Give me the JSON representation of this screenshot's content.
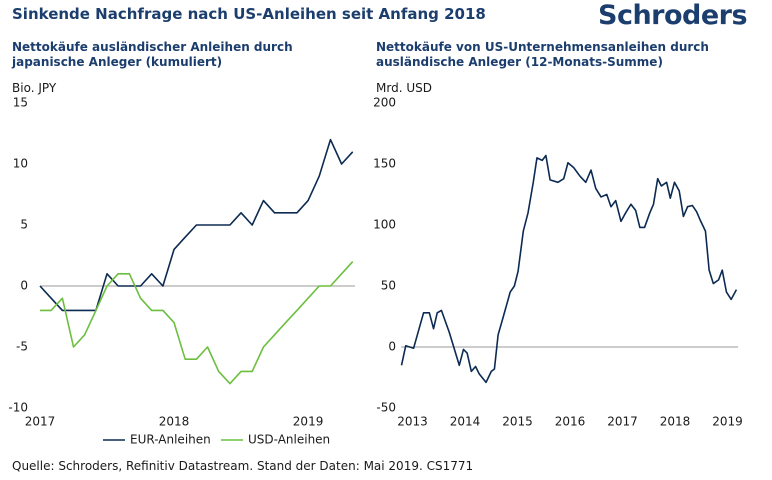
{
  "title": "Sinkende Nachfrage nach US-Anleihen seit Anfang 2018",
  "logo": "Schroders",
  "footer": "Quelle: Schroders, Refinitiv Datastream. Stand der Daten: Mai 2019. CS1771",
  "chart_data": [
    {
      "type": "line",
      "title": "Nettokäufe ausländischer Anleihen durch japanische Anleger (kumuliert)",
      "y_label": "Bio. JPY",
      "x": [
        2017,
        2017.083,
        2017.167,
        2017.25,
        2017.333,
        2017.417,
        2017.5,
        2017.583,
        2017.667,
        2017.75,
        2017.833,
        2017.917,
        2018,
        2018.083,
        2018.167,
        2018.25,
        2018.333,
        2018.417,
        2018.5,
        2018.583,
        2018.667,
        2018.75,
        2018.833,
        2018.917,
        2019,
        2019.083,
        2019.167,
        2019.25,
        2019.333
      ],
      "series": [
        {
          "name": "EUR-Anleihen",
          "color": "#0c2a52",
          "values": [
            0,
            -1,
            -2,
            -2,
            -2,
            -2,
            1,
            0,
            0,
            0,
            1,
            0,
            3,
            4,
            5,
            5,
            5,
            5,
            6,
            5,
            7,
            6,
            6,
            6,
            7,
            9,
            12,
            10,
            11
          ]
        },
        {
          "name": "USD-Anleihen",
          "color": "#6cbf3e",
          "values": [
            -2,
            -2,
            -1,
            -5,
            -4,
            -2,
            0,
            1,
            1,
            -1,
            -2,
            -2,
            -3,
            -6,
            -6,
            -5,
            -7,
            -8,
            -7,
            -7,
            -5,
            -4,
            -3,
            -2,
            -1,
            0,
            0,
            1,
            2
          ]
        }
      ],
      "xlim": [
        2017,
        2019.35
      ],
      "xticks": [
        2017,
        2018,
        2019
      ],
      "ylim": [
        -10,
        15
      ],
      "yticks": [
        -10,
        -5,
        0,
        5,
        10,
        15
      ]
    },
    {
      "type": "line",
      "title": "Nettokäufe von US-Unternehmensanleihen durch ausländische Anleger (12-Monats-Summe)",
      "y_label": "Mrd. USD",
      "x": [
        2012.79,
        2012.87,
        2013.02,
        2013.21,
        2013.32,
        2013.4,
        2013.47,
        2013.55,
        2013.7,
        2013.82,
        2013.89,
        2013.97,
        2014.04,
        2014.12,
        2014.2,
        2014.27,
        2014.4,
        2014.5,
        2014.56,
        2014.63,
        2014.73,
        2014.86,
        2014.94,
        2015.01,
        2015.11,
        2015.2,
        2015.3,
        2015.37,
        2015.47,
        2015.54,
        2015.62,
        2015.77,
        2015.88,
        2015.96,
        2016.07,
        2016.19,
        2016.3,
        2016.4,
        2016.49,
        2016.59,
        2016.7,
        2016.78,
        2016.87,
        2016.97,
        2017.06,
        2017.16,
        2017.25,
        2017.33,
        2017.42,
        2017.52,
        2017.59,
        2017.67,
        2017.74,
        2017.84,
        2017.91,
        2017.99,
        2018.08,
        2018.16,
        2018.24,
        2018.33,
        2018.41,
        2018.48,
        2018.58,
        2018.65,
        2018.73,
        2018.83,
        2018.9,
        2018.98,
        2019.07,
        2019.17
      ],
      "series": [
        {
          "color": "#0c2a52",
          "values": [
            -15,
            1,
            -1,
            28,
            28,
            15,
            28,
            30,
            12,
            -5,
            -15,
            -2,
            -5,
            -20,
            -16,
            -22,
            -29,
            -20,
            -18,
            10,
            25,
            45,
            50,
            62,
            95,
            110,
            135,
            155,
            153,
            157,
            137,
            135,
            138,
            151,
            147,
            140,
            135,
            145,
            130,
            123,
            125,
            115,
            120,
            103,
            110,
            117,
            112,
            98,
            98,
            110,
            117,
            138,
            132,
            135,
            122,
            135,
            128,
            107,
            115,
            116,
            111,
            104,
            95,
            63,
            52,
            55,
            63,
            45,
            39,
            47
          ]
        }
      ],
      "xlim": [
        2012.78,
        2019.2
      ],
      "xticks": [
        2013,
        2014,
        2015,
        2016,
        2017,
        2018,
        2019
      ],
      "ylim": [
        -50,
        200
      ],
      "yticks": [
        -50,
        0,
        50,
        100,
        150,
        200
      ]
    }
  ]
}
